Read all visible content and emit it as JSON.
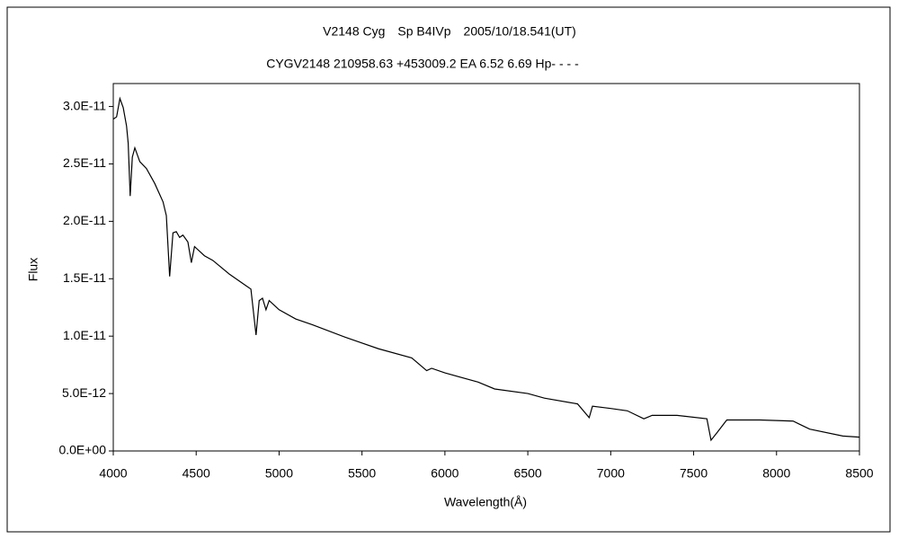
{
  "chart_data": {
    "type": "line",
    "title": "V2148 Cyg　Sp B4IVp　2005/10/18.541(UT)",
    "subtitle": "CYGV2148 210958.63 +453009.2 EA 6.52 6.69 Hp- - - -",
    "x_label": "Wavelength(Å)",
    "y_label": "Flux",
    "xlim": [
      4000,
      8500
    ],
    "xticks": [
      4000,
      4500,
      5000,
      5500,
      6000,
      6500,
      7000,
      7500,
      8000,
      8500
    ],
    "ylim": [
      0,
      3.2e-11
    ],
    "yticks": [
      {
        "value": 0,
        "label": "0.0E+00"
      },
      {
        "value": 5e-12,
        "label": "5.0E-12"
      },
      {
        "value": 1e-11,
        "label": "1.0E-11"
      },
      {
        "value": 1.5e-11,
        "label": "1.5E-11"
      },
      {
        "value": 2e-11,
        "label": "2.0E-11"
      },
      {
        "value": 2.5e-11,
        "label": "2.5E-11"
      },
      {
        "value": 3e-11,
        "label": "3.0E-11"
      }
    ],
    "color": "#000000",
    "x": [
      4000,
      4020,
      4040,
      4060,
      4080,
      4090,
      4102,
      4115,
      4130,
      4160,
      4200,
      4250,
      4300,
      4320,
      4340,
      4360,
      4380,
      4400,
      4420,
      4450,
      4471,
      4490,
      4550,
      4600,
      4700,
      4800,
      4830,
      4861,
      4880,
      4900,
      4921,
      4940,
      5000,
      5100,
      5200,
      5400,
      5600,
      5800,
      5890,
      5920,
      6000,
      6200,
      6300,
      6500,
      6600,
      6800,
      6870,
      6890,
      7000,
      7100,
      7200,
      7250,
      7400,
      7580,
      7605,
      7640,
      7700,
      7900,
      8100,
      8200,
      8400,
      8500
    ],
    "values": [
      2.89e-11,
      2.91e-11,
      3.07e-11,
      2.99e-11,
      2.83e-11,
      2.68e-11,
      2.22e-11,
      2.56e-11,
      2.64e-11,
      2.52e-11,
      2.46e-11,
      2.33e-11,
      2.17e-11,
      2.05e-11,
      1.52e-11,
      1.9e-11,
      1.91e-11,
      1.86e-11,
      1.88e-11,
      1.82e-11,
      1.64e-11,
      1.78e-11,
      1.7e-11,
      1.66e-11,
      1.54e-11,
      1.44e-11,
      1.41e-11,
      1.01e-11,
      1.31e-11,
      1.33e-11,
      1.23e-11,
      1.31e-11,
      1.23e-11,
      1.15e-11,
      1.1e-11,
      9.9e-12,
      8.9e-12,
      8.1e-12,
      7e-12,
      7.2e-12,
      6.8e-12,
      6e-12,
      5.4e-12,
      5e-12,
      4.6e-12,
      4.1e-12,
      2.9e-12,
      3.9e-12,
      3.7e-12,
      3.5e-12,
      2.8e-12,
      3.1e-12,
      3.1e-12,
      2.8e-12,
      9.4e-13,
      1.57e-12,
      2.7e-12,
      2.7e-12,
      2.6e-12,
      1.9e-12,
      1.3e-12,
      1.2e-12
    ]
  }
}
